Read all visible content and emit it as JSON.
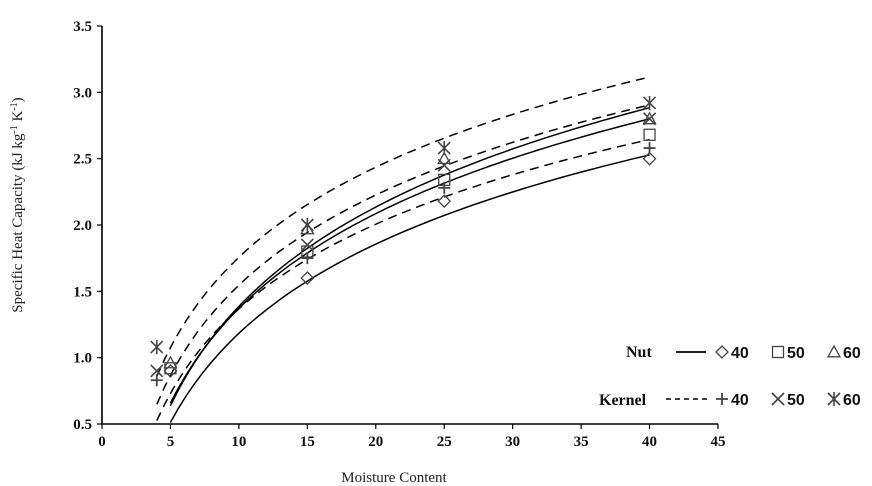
{
  "chart_data": {
    "type": "scatter",
    "title": "",
    "xlabel": "Moisture Content",
    "ylabel": "Specific Heat Capacity (kJ kg-1 K-1)",
    "ylabel_parts": {
      "main": "Specific Heat Capacity (kJ kg",
      "sup1": "-1",
      "mid": " K",
      "sup2": "-1",
      "end": ")"
    },
    "xlim": [
      0,
      45
    ],
    "ylim": [
      0.5,
      3.5
    ],
    "xticks": [
      0,
      5,
      10,
      15,
      20,
      25,
      30,
      35,
      40,
      45
    ],
    "yticks": [
      "0.5",
      "1.0",
      "1.5",
      "2.0",
      "2.5",
      "3.0",
      "3.5"
    ],
    "grid": false,
    "legend_position": "bottom-right",
    "legend_groups": [
      {
        "label": "Nut",
        "line_style": "solid"
      },
      {
        "label": "Kernel",
        "line_style": "dashed"
      }
    ],
    "series": [
      {
        "name": "40",
        "group": "Nut",
        "marker": "diamond",
        "marker_glyph": "◇",
        "line": "solid",
        "x": [
          5,
          15,
          25,
          40
        ],
        "y": [
          0.9,
          1.6,
          2.18,
          2.5
        ],
        "trend": {
          "a": -1.05,
          "b": 0.97
        }
      },
      {
        "name": "50",
        "group": "Nut",
        "marker": "square",
        "marker_glyph": "□",
        "line": "solid",
        "x": [
          5,
          15,
          25,
          40
        ],
        "y": [
          0.92,
          1.8,
          2.34,
          2.68
        ],
        "trend": {
          "a": -1.0,
          "b": 1.03
        }
      },
      {
        "name": "60",
        "group": "Nut",
        "marker": "triangle",
        "marker_glyph": "Δ",
        "line": "solid",
        "x": [
          5,
          15,
          25,
          40
        ],
        "y": [
          0.96,
          1.97,
          2.5,
          2.8
        ],
        "trend": {
          "a": -1.1,
          "b": 1.08
        }
      },
      {
        "name": "40",
        "group": "Kernel",
        "marker": "plus",
        "marker_glyph": "+",
        "line": "dashed",
        "x": [
          4,
          15,
          25,
          40
        ],
        "y": [
          0.83,
          1.75,
          2.28,
          2.58
        ],
        "trend": {
          "a": -0.75,
          "b": 0.92
        }
      },
      {
        "name": "50",
        "group": "Kernel",
        "marker": "cross",
        "marker_glyph": "×",
        "line": "dashed",
        "x": [
          4,
          15,
          25,
          40
        ],
        "y": [
          0.9,
          1.85,
          2.45,
          2.8
        ],
        "trend": {
          "a": -0.71,
          "b": 0.98
        }
      },
      {
        "name": "60",
        "group": "Kernel",
        "marker": "star",
        "marker_glyph": "✳",
        "line": "dashed",
        "x": [
          4,
          15,
          25,
          40
        ],
        "y": [
          1.08,
          2.0,
          2.58,
          2.92
        ],
        "trend": {
          "a": -0.5,
          "b": 0.98
        }
      }
    ]
  }
}
